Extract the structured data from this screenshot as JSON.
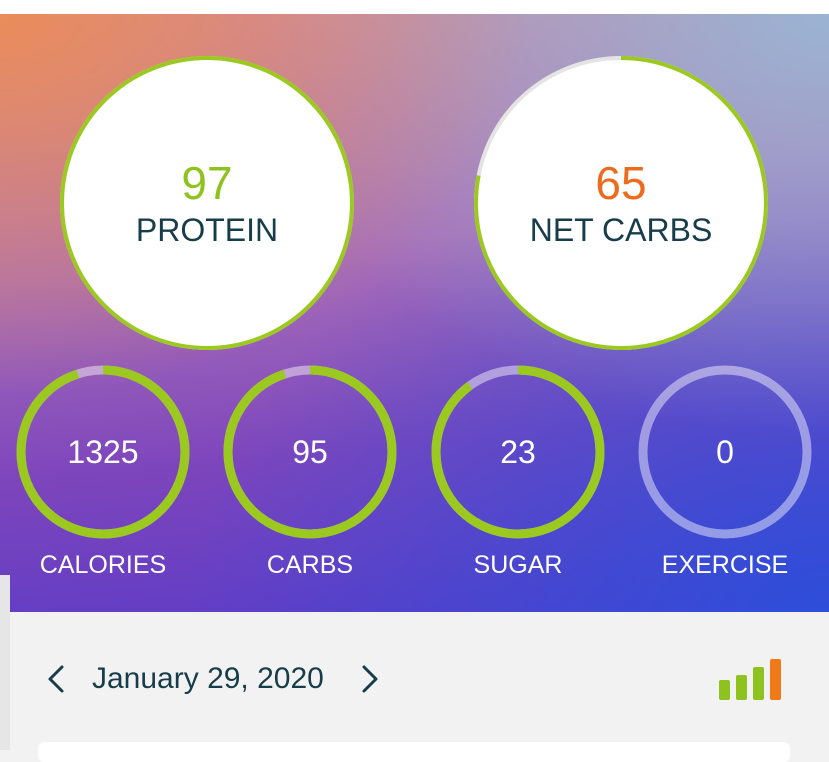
{
  "macros": {
    "protein": {
      "value": "97",
      "label": "PROTEIN",
      "value_color": "#8dc21f",
      "progress": 1.0
    },
    "net_carbs": {
      "value": "65",
      "label": "NET CARBS",
      "value_color": "#ee6b1e",
      "progress": 0.78
    }
  },
  "stats": [
    {
      "key": "calories",
      "value": "1325",
      "label": "CALORIES",
      "progress": 0.95
    },
    {
      "key": "carbs",
      "value": "95",
      "label": "CARBS",
      "progress": 0.95
    },
    {
      "key": "sugar",
      "value": "23",
      "label": "SUGAR",
      "progress": 0.9
    },
    {
      "key": "exercise",
      "value": "0",
      "label": "EXERCISE",
      "progress": 0.0
    }
  ],
  "date_nav": {
    "date": "January 29, 2020",
    "prev_icon": "chevron-left-icon",
    "next_icon": "chevron-right-icon",
    "chart_icon": "bar-chart-icon"
  },
  "colors": {
    "ring_green": "#9bc91f",
    "ring_track": "rgba(255,255,255,0.45)",
    "text_dark": "#173d4a",
    "bar_green": "#8dc21f",
    "bar_orange": "#f07a1a"
  }
}
